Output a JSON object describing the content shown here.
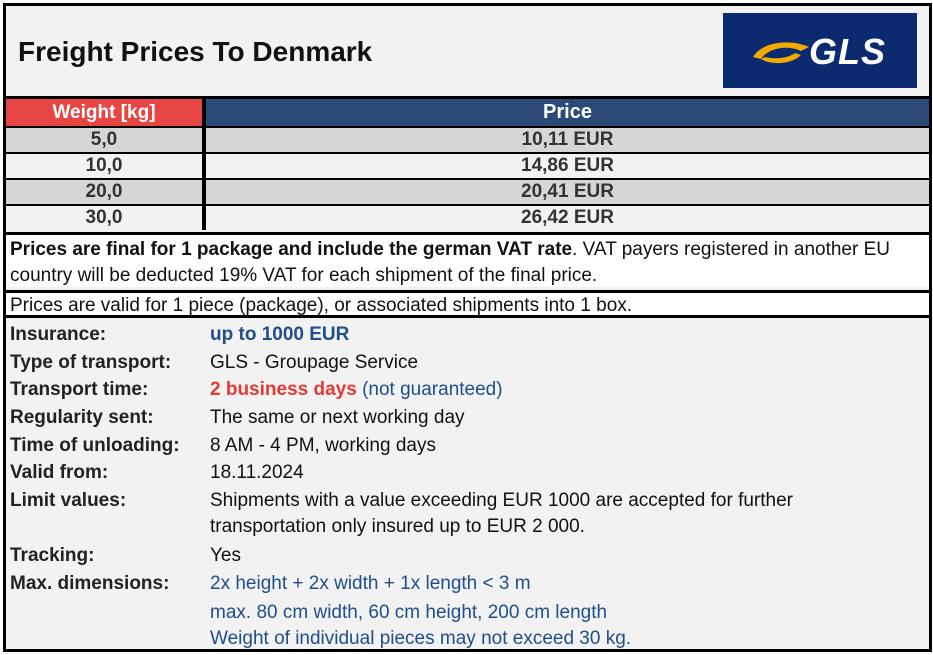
{
  "header": {
    "title": "Freight Prices To Denmark",
    "logo_text": "GLS"
  },
  "colors": {
    "weight_header": "#e84545",
    "price_header": "#2c4a78",
    "logo_bg": "#0b2a6f",
    "accent_blue": "#1f4e8c",
    "accent_red": "#e53935"
  },
  "table": {
    "col_weight": "Weight [kg]",
    "col_price": "Price",
    "rows": [
      {
        "weight": "5,0",
        "price": "10,11 EUR"
      },
      {
        "weight": "10,0",
        "price": "14,86 EUR"
      },
      {
        "weight": "20,0",
        "price": "20,41 EUR"
      },
      {
        "weight": "30,0",
        "price": "26,42 EUR"
      }
    ]
  },
  "notes": {
    "note1_bold": "Prices are final for 1 package and include the german VAT rate",
    "note1_rest": ". VAT payers registered in another EU country will be deducted 19% VAT for each shipment of the final price.",
    "note2": "Prices are valid for 1 piece (package), or associated shipments into 1 box."
  },
  "details": {
    "insurance_label": "Insurance:",
    "insurance_value": "up to 1000 EUR",
    "transport_type_label": "Type of transport:",
    "transport_type_value": "GLS - Groupage Service",
    "transport_time_label": "Transport time:",
    "transport_time_value": "2 business days",
    "transport_time_note": "(not guaranteed)",
    "regularity_label": "Regularity sent:",
    "regularity_value": "The same or next working day",
    "unloading_label": "Time of unloading:",
    "unloading_value": "8 AM - 4 PM, working days",
    "valid_from_label": "Valid from:",
    "valid_from_value": "18.11.2024",
    "limit_label": "Limit values:",
    "limit_value_1": "Shipments with a value exceeding EUR 1000 are accepted for further",
    "limit_value_2": "transportation only insured up to EUR 2 000.",
    "tracking_label": "Tracking:",
    "tracking_value": "Yes",
    "dimensions_label": "Max. dimensions:",
    "dimensions_value_1": "2x height + 2x width + 1x length < 3 m",
    "dimensions_value_2": "max. 80 cm width, 60 cm height, 200 cm length",
    "dimensions_value_3": "Weight of individual pieces may not exceed 30 kg."
  }
}
